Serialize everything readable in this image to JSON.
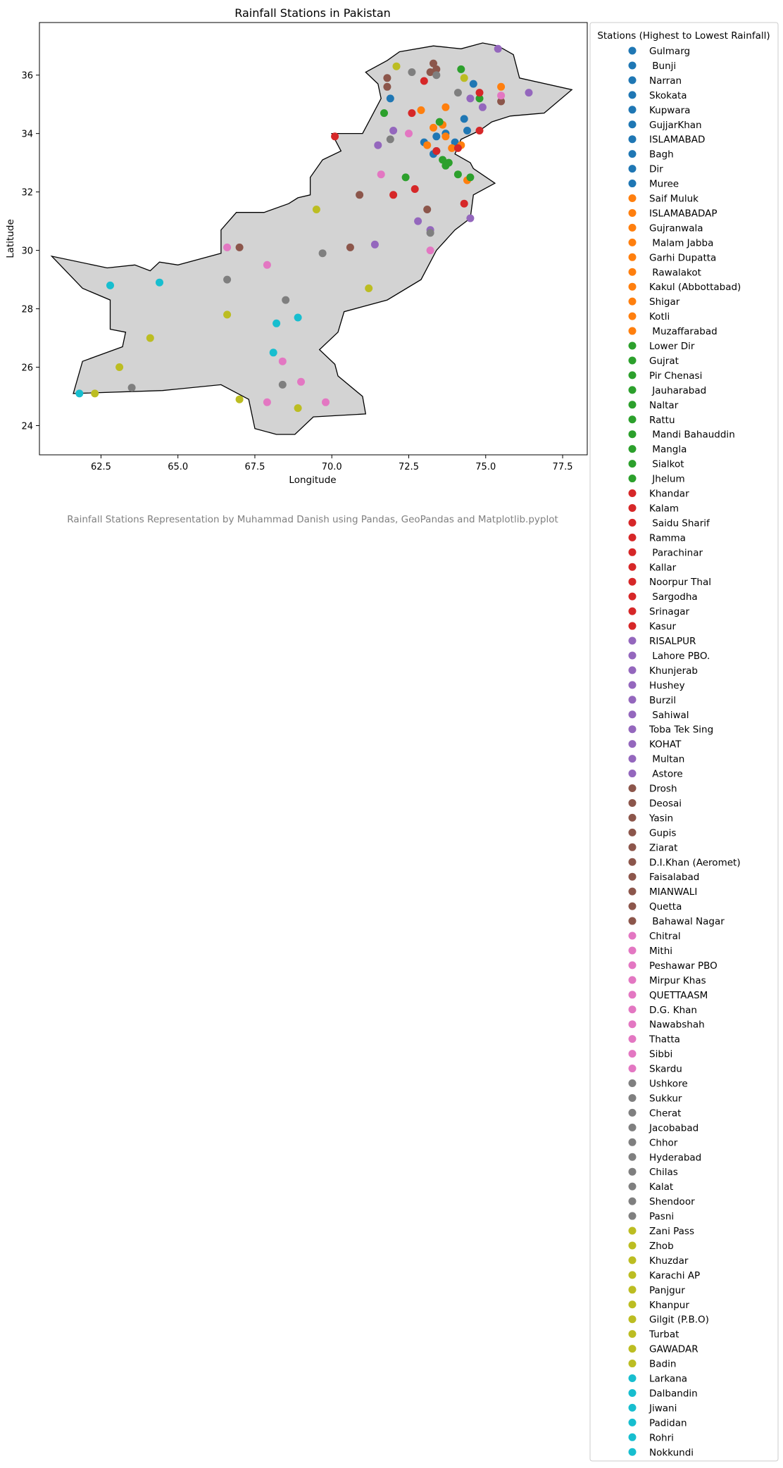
{
  "chart_data": {
    "type": "scatter",
    "title": "Rainfall Stations in Pakistan",
    "xlabel": "Longitude",
    "ylabel": "Latitude",
    "xlim": [
      60.5,
      78.3
    ],
    "ylim": [
      23.0,
      37.8
    ],
    "xticks": [
      62.5,
      65.0,
      67.5,
      70.0,
      72.5,
      75.0,
      77.5
    ],
    "xtick_labels": [
      "62.5",
      "65.0",
      "67.5",
      "70.0",
      "72.5",
      "75.0",
      "77.5"
    ],
    "yticks": [
      24,
      26,
      28,
      30,
      32,
      34,
      36
    ],
    "ytick_labels": [
      "24",
      "26",
      "28",
      "30",
      "32",
      "34",
      "36"
    ],
    "grid": false,
    "legend_title": "Stations (Highest to Lowest Rainfall)",
    "legend_placement": "outside-right",
    "caption": "Rainfall Stations Representation by Muhammad Danish using Pandas, GeoPandas and Matplotlib.pyplot",
    "colors": [
      "#1f77b4",
      "#ff7f0e",
      "#2ca02c",
      "#d62728",
      "#9467bd",
      "#8c564b",
      "#e377c2",
      "#7f7f7f",
      "#bcbd22",
      "#17becf"
    ],
    "boundary_fill": "#d3d3d3",
    "boundary": [
      [
        72.2,
        36.8
      ],
      [
        73.3,
        37.0
      ],
      [
        74.2,
        36.9
      ],
      [
        74.9,
        37.1
      ],
      [
        75.4,
        37.0
      ],
      [
        75.9,
        36.7
      ],
      [
        76.1,
        35.9
      ],
      [
        77.8,
        35.5
      ],
      [
        76.9,
        34.7
      ],
      [
        75.8,
        34.6
      ],
      [
        75.2,
        34.4
      ],
      [
        74.8,
        34.1
      ],
      [
        74.2,
        33.8
      ],
      [
        74.0,
        33.3
      ],
      [
        74.5,
        33.0
      ],
      [
        74.6,
        32.8
      ],
      [
        75.3,
        32.3
      ],
      [
        74.6,
        31.9
      ],
      [
        74.5,
        31.1
      ],
      [
        74.0,
        30.7
      ],
      [
        73.4,
        30.0
      ],
      [
        72.9,
        29.0
      ],
      [
        71.8,
        28.3
      ],
      [
        70.4,
        27.9
      ],
      [
        70.2,
        27.2
      ],
      [
        69.6,
        26.6
      ],
      [
        70.1,
        26.1
      ],
      [
        70.2,
        25.7
      ],
      [
        71.0,
        25.0
      ],
      [
        71.1,
        24.4
      ],
      [
        69.4,
        24.3
      ],
      [
        68.8,
        23.7
      ],
      [
        68.2,
        23.7
      ],
      [
        67.5,
        23.9
      ],
      [
        67.3,
        24.9
      ],
      [
        66.4,
        25.4
      ],
      [
        64.5,
        25.2
      ],
      [
        61.6,
        25.1
      ],
      [
        61.9,
        26.2
      ],
      [
        63.2,
        26.7
      ],
      [
        63.3,
        27.2
      ],
      [
        62.8,
        27.3
      ],
      [
        62.8,
        28.3
      ],
      [
        61.9,
        28.7
      ],
      [
        60.9,
        29.8
      ],
      [
        62.7,
        29.4
      ],
      [
        63.6,
        29.5
      ],
      [
        64.1,
        29.3
      ],
      [
        64.4,
        29.6
      ],
      [
        65.0,
        29.5
      ],
      [
        66.4,
        29.9
      ],
      [
        66.4,
        30.7
      ],
      [
        66.9,
        31.3
      ],
      [
        67.8,
        31.3
      ],
      [
        68.6,
        31.6
      ],
      [
        68.9,
        31.8
      ],
      [
        69.3,
        31.9
      ],
      [
        69.3,
        32.5
      ],
      [
        69.7,
        33.1
      ],
      [
        70.3,
        33.4
      ],
      [
        70.0,
        34.0
      ],
      [
        71.0,
        34.0
      ],
      [
        71.2,
        34.4
      ],
      [
        71.6,
        35.2
      ],
      [
        71.5,
        35.7
      ],
      [
        71.1,
        36.1
      ],
      [
        71.8,
        36.5
      ],
      [
        72.2,
        36.8
      ]
    ],
    "stations": [
      {
        "name": "Gulmarg",
        "lon": 74.6,
        "lat": 35.7
      },
      {
        "name": " Bunji",
        "lon": 74.4,
        "lat": 34.1
      },
      {
        "name": "Narran",
        "lon": 74.3,
        "lat": 34.5
      },
      {
        "name": "Skokata",
        "lon": 74.0,
        "lat": 33.7
      },
      {
        "name": "Kupwara",
        "lon": 73.4,
        "lat": 33.9
      },
      {
        "name": "GujjarKhan",
        "lon": 73.3,
        "lat": 33.3
      },
      {
        "name": "ISLAMABAD",
        "lon": 73.0,
        "lat": 33.7
      },
      {
        "name": "Bagh",
        "lon": 73.7,
        "lat": 34.0
      },
      {
        "name": "Dir",
        "lon": 71.9,
        "lat": 35.2
      },
      {
        "name": "Muree",
        "lon": 73.4,
        "lat": 33.4
      },
      {
        "name": "Saif Muluk",
        "lon": 75.5,
        "lat": 35.6
      },
      {
        "name": "ISLAMABADAP",
        "lon": 73.7,
        "lat": 34.9
      },
      {
        "name": "Gujranwala",
        "lon": 73.9,
        "lat": 33.5
      },
      {
        "name": " Malam Jabba",
        "lon": 72.9,
        "lat": 34.8
      },
      {
        "name": "Garhi Dupatta",
        "lon": 74.4,
        "lat": 32.4
      },
      {
        "name": " Rawalakot",
        "lon": 73.3,
        "lat": 34.2
      },
      {
        "name": "Kakul (Abbottabad)",
        "lon": 73.7,
        "lat": 33.9
      },
      {
        "name": "Shigar",
        "lon": 73.6,
        "lat": 34.3
      },
      {
        "name": "Kotli",
        "lon": 73.1,
        "lat": 33.6
      },
      {
        "name": " Muzaffarabad",
        "lon": 74.2,
        "lat": 33.6
      },
      {
        "name": "Lower Dir",
        "lon": 71.7,
        "lat": 34.7
      },
      {
        "name": "Gujrat",
        "lon": 74.1,
        "lat": 32.6
      },
      {
        "name": "Pir Chenasi",
        "lon": 73.5,
        "lat": 34.4
      },
      {
        "name": " Jauharabad",
        "lon": 72.4,
        "lat": 32.5
      },
      {
        "name": "Naltar",
        "lon": 74.2,
        "lat": 36.2
      },
      {
        "name": "Rattu",
        "lon": 74.8,
        "lat": 35.2
      },
      {
        "name": " Mandi Bahauddin",
        "lon": 73.6,
        "lat": 33.1
      },
      {
        "name": " Mangla",
        "lon": 73.8,
        "lat": 33.0
      },
      {
        "name": " Sialkot",
        "lon": 74.5,
        "lat": 32.5
      },
      {
        "name": " Jhelum",
        "lon": 73.7,
        "lat": 32.9
      },
      {
        "name": "Khandar",
        "lon": 72.6,
        "lat": 34.7
      },
      {
        "name": "Kalam",
        "lon": 72.7,
        "lat": 32.1
      },
      {
        "name": " Saidu Sharif",
        "lon": 72.0,
        "lat": 31.9
      },
      {
        "name": "Ramma",
        "lon": 74.8,
        "lat": 34.1
      },
      {
        "name": " Parachinar",
        "lon": 70.1,
        "lat": 33.9
      },
      {
        "name": "Kallar",
        "lon": 73.4,
        "lat": 33.4
      },
      {
        "name": "Noorpur Thal",
        "lon": 74.1,
        "lat": 33.5
      },
      {
        "name": " Sargodha",
        "lon": 73.0,
        "lat": 35.8
      },
      {
        "name": "Srinagar",
        "lon": 74.8,
        "lat": 35.4
      },
      {
        "name": "Kasur",
        "lon": 74.3,
        "lat": 31.6
      },
      {
        "name": "RISALPUR",
        "lon": 72.0,
        "lat": 34.1
      },
      {
        "name": " Lahore PBO.",
        "lon": 74.5,
        "lat": 31.1
      },
      {
        "name": "Khunjerab",
        "lon": 75.4,
        "lat": 36.9
      },
      {
        "name": "Hushey",
        "lon": 76.4,
        "lat": 35.4
      },
      {
        "name": "Burzil",
        "lon": 74.9,
        "lat": 34.9
      },
      {
        "name": " Sahiwal",
        "lon": 73.2,
        "lat": 30.7
      },
      {
        "name": "Toba Tek Sing",
        "lon": 72.8,
        "lat": 31.0
      },
      {
        "name": "KOHAT",
        "lon": 71.5,
        "lat": 33.6
      },
      {
        "name": " Multan",
        "lon": 71.4,
        "lat": 30.2
      },
      {
        "name": " Astore",
        "lon": 74.5,
        "lat": 35.2
      },
      {
        "name": "Drosh",
        "lon": 71.8,
        "lat": 35.6
      },
      {
        "name": "Deosai",
        "lon": 75.5,
        "lat": 35.1
      },
      {
        "name": "Yasin",
        "lon": 73.3,
        "lat": 36.4
      },
      {
        "name": "Gupis",
        "lon": 73.4,
        "lat": 36.2
      },
      {
        "name": "Ziarat",
        "lon": 70.9,
        "lat": 31.9
      },
      {
        "name": "D.I.Khan (Aeromet)",
        "lon": 73.1,
        "lat": 31.4
      },
      {
        "name": "Faisalabad",
        "lon": 73.2,
        "lat": 36.1
      },
      {
        "name": "MIANWALI",
        "lon": 71.8,
        "lat": 35.9
      },
      {
        "name": "Quetta",
        "lon": 67.0,
        "lat": 30.1
      },
      {
        "name": " Bahawal Nagar",
        "lon": 70.6,
        "lat": 30.1
      },
      {
        "name": "Chitral",
        "lon": 71.6,
        "lat": 32.6
      },
      {
        "name": "Mithi",
        "lon": 69.8,
        "lat": 24.8
      },
      {
        "name": "Peshawar PBO",
        "lon": 72.5,
        "lat": 34.0
      },
      {
        "name": "Mirpur Khas",
        "lon": 69.0,
        "lat": 25.5
      },
      {
        "name": "QUETTAASM",
        "lon": 66.6,
        "lat": 30.1
      },
      {
        "name": "D.G. Khan",
        "lon": 73.2,
        "lat": 30.0
      },
      {
        "name": "Nawabshah",
        "lon": 68.4,
        "lat": 26.2
      },
      {
        "name": "Thatta",
        "lon": 67.9,
        "lat": 24.8
      },
      {
        "name": "Sibbi",
        "lon": 67.9,
        "lat": 29.5
      },
      {
        "name": "Skardu",
        "lon": 75.5,
        "lat": 35.3
      },
      {
        "name": "Ushkore",
        "lon": 73.4,
        "lat": 36.0
      },
      {
        "name": "Sukkur",
        "lon": 68.5,
        "lat": 28.3
      },
      {
        "name": "Cherat",
        "lon": 71.9,
        "lat": 33.8
      },
      {
        "name": "Jacobabad",
        "lon": 69.7,
        "lat": 29.9
      },
      {
        "name": "Chhor",
        "lon": 68.4,
        "lat": 25.4
      },
      {
        "name": "Hyderabad",
        "lon": 74.1,
        "lat": 35.4
      },
      {
        "name": "Chilas",
        "lon": 73.2,
        "lat": 30.6
      },
      {
        "name": "Kalat",
        "lon": 66.6,
        "lat": 29.0
      },
      {
        "name": "Shendoor",
        "lon": 72.6,
        "lat": 36.1
      },
      {
        "name": "Pasni",
        "lon": 63.5,
        "lat": 25.3
      },
      {
        "name": "Zani Pass",
        "lon": 72.1,
        "lat": 36.3
      },
      {
        "name": "Zhob",
        "lon": 69.5,
        "lat": 31.4
      },
      {
        "name": "Khuzdar",
        "lon": 66.6,
        "lat": 27.8
      },
      {
        "name": "Karachi AP",
        "lon": 67.0,
        "lat": 24.9
      },
      {
        "name": "Panjgur",
        "lon": 64.1,
        "lat": 27.0
      },
      {
        "name": "Khanpur",
        "lon": 71.2,
        "lat": 28.7
      },
      {
        "name": "Gilgit (P.B.O)",
        "lon": 74.3,
        "lat": 35.9
      },
      {
        "name": "Turbat",
        "lon": 63.1,
        "lat": 26.0
      },
      {
        "name": "GAWADAR",
        "lon": 62.3,
        "lat": 25.1
      },
      {
        "name": "Badin",
        "lon": 68.9,
        "lat": 24.6
      },
      {
        "name": "Larkana",
        "lon": 68.2,
        "lat": 27.5
      },
      {
        "name": "Dalbandin",
        "lon": 64.4,
        "lat": 28.9
      },
      {
        "name": "Jiwani",
        "lon": 61.8,
        "lat": 25.1
      },
      {
        "name": "Padidan",
        "lon": 68.1,
        "lat": 26.5
      },
      {
        "name": "Rohri",
        "lon": 68.9,
        "lat": 27.7
      },
      {
        "name": "Nokkundi",
        "lon": 62.8,
        "lat": 28.8
      }
    ]
  }
}
